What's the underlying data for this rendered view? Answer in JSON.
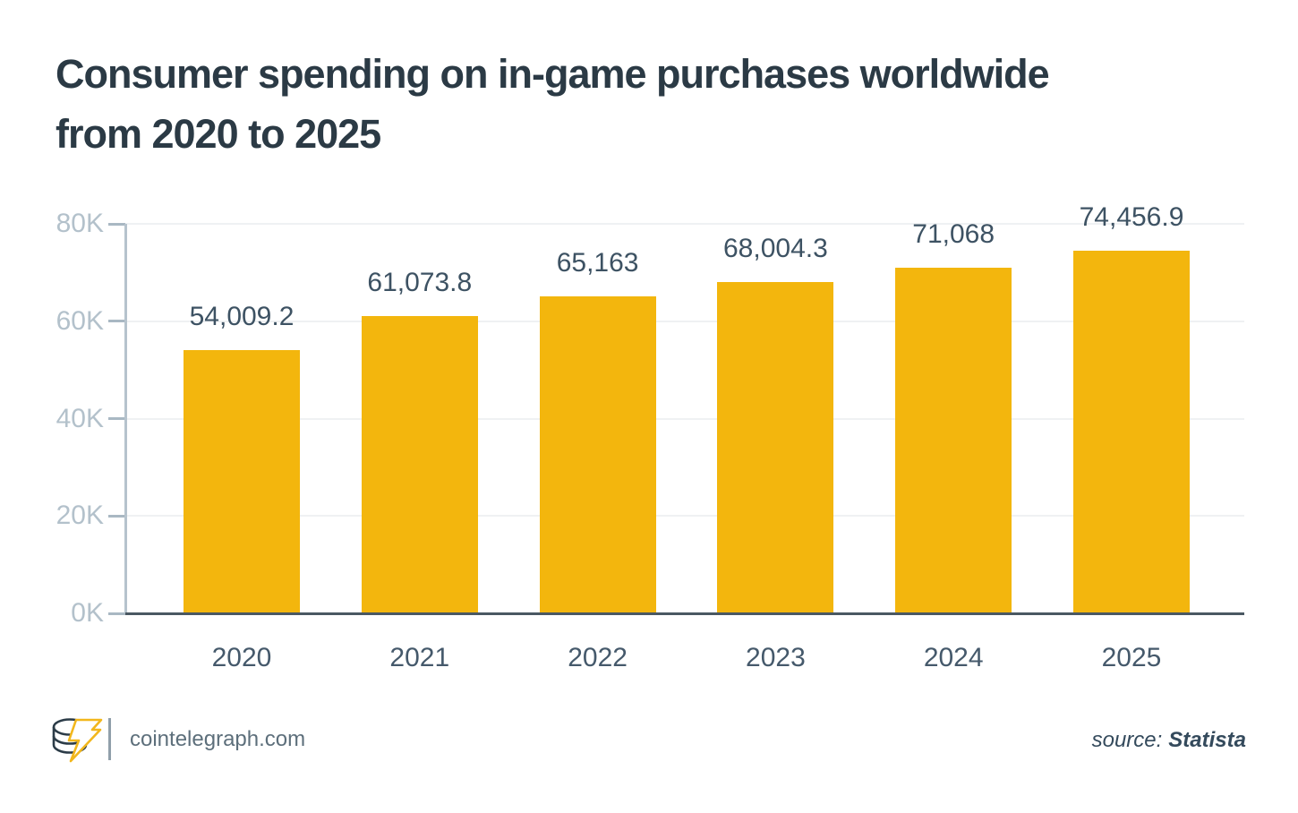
{
  "header": {
    "title": "Consumer spending on in-game purchases worldwide from 2020 to 2025"
  },
  "chart_data": {
    "type": "bar",
    "title": "Consumer spending on in-game purchases worldwide from 2020 to 2025",
    "categories": [
      "2020",
      "2021",
      "2022",
      "2023",
      "2024",
      "2025"
    ],
    "values": [
      54009.2,
      61073.8,
      65163,
      68004.3,
      71068,
      74456.9
    ],
    "value_labels": [
      "54,009.2",
      "61,073.8",
      "65,163",
      "68,004.3",
      "71,068",
      "74,456.9"
    ],
    "xlabel": "",
    "ylabel": "",
    "ylim": [
      0,
      80000
    ],
    "yticks": [
      {
        "value": 80000,
        "label": "80K"
      },
      {
        "value": 60000,
        "label": "60K"
      },
      {
        "value": 40000,
        "label": "40K"
      },
      {
        "value": 20000,
        "label": "20K"
      },
      {
        "value": 0,
        "label": "0K"
      }
    ],
    "grid": true,
    "legend": false,
    "bar_color": "#F3B60D"
  },
  "footer": {
    "logo_icon": "cointelegraph-coin-stack-lightning-logo",
    "site": "cointelegraph.com",
    "source_prefix": "source:",
    "source_name": "Statista"
  },
  "colors": {
    "bar": "#F3B60D",
    "title_text": "#2B3A45",
    "y_axis_text": "#B3C1CB",
    "x_axis_text": "#45596B",
    "value_label_text": "#3D5263",
    "gridline": "#EFF1F3",
    "baseline": "#4A5862",
    "axis_line": "#B6C3CD",
    "footer_site_text": "#5D6F7B",
    "source_text": "#344A5C",
    "logo_yellow": "#F2B71C",
    "logo_dark": "#2C3C48"
  }
}
